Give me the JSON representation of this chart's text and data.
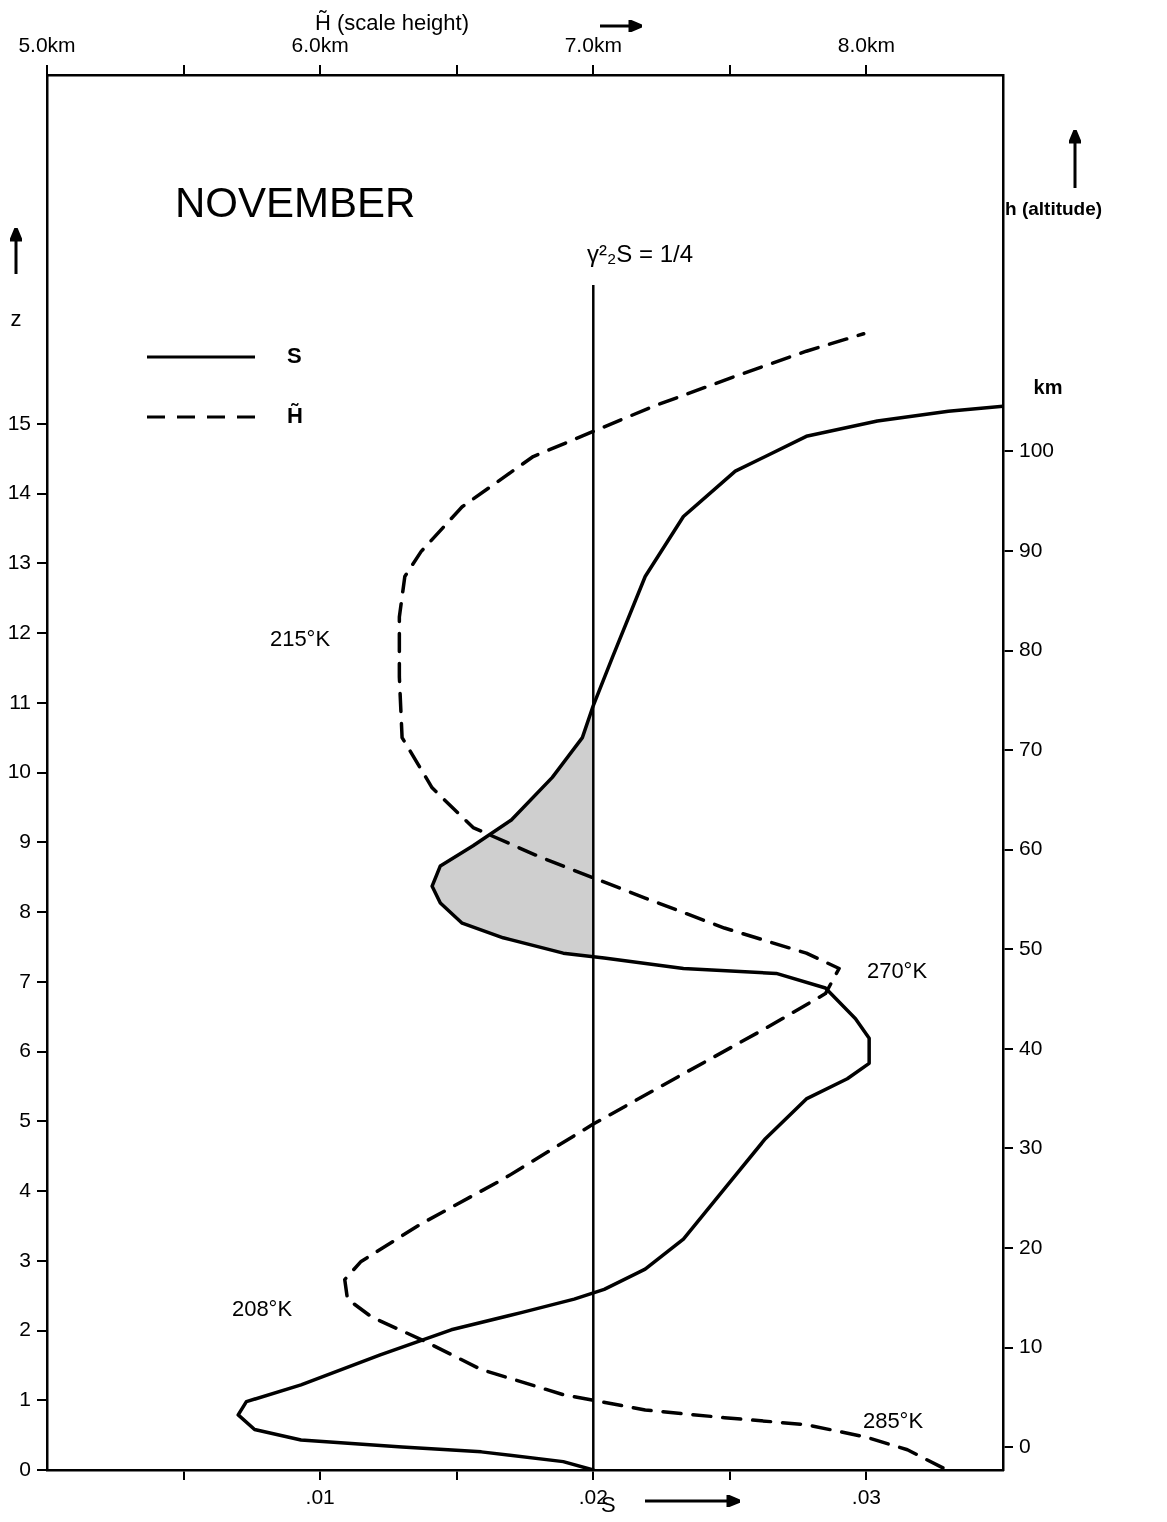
{
  "chart_data": {
    "type": "line",
    "title": "NOVEMBER",
    "xlabel": "S",
    "x2label": "H̃ (scale height)",
    "ylabel": "z",
    "y2label": "h (altitude)",
    "xlim": [
      0,
      0.035
    ],
    "xticks": [
      {
        "value": 0.005,
        "label": null
      },
      {
        "value": 0.01,
        "label": ".01"
      },
      {
        "value": 0.015,
        "label": null
      },
      {
        "value": 0.02,
        "label": ".02"
      },
      {
        "value": 0.025,
        "label": null
      },
      {
        "value": 0.03,
        "label": ".03"
      }
    ],
    "x2lim": [
      5,
      8.5
    ],
    "x2ticks": [
      {
        "value": 5,
        "label": "5.0km"
      },
      {
        "value": 5.5,
        "label": null
      },
      {
        "value": 6,
        "label": "6.0km"
      },
      {
        "value": 6.5,
        "label": null
      },
      {
        "value": 7,
        "label": "7.0km"
      },
      {
        "value": 7.5,
        "label": null
      },
      {
        "value": 8,
        "label": "8.0km"
      }
    ],
    "ylim": [
      0,
      20
    ],
    "yticks": [
      0,
      1,
      2,
      3,
      4,
      5,
      6,
      7,
      8,
      9,
      10,
      11,
      12,
      13,
      14,
      15
    ],
    "y2lim": [
      -2.3,
      137.8
    ],
    "y2ticks": [
      0,
      10,
      20,
      30,
      40,
      50,
      60,
      70,
      80,
      90,
      100
    ],
    "legend": "top left",
    "marker": "none",
    "series": [
      {
        "name": "S",
        "color": "#000000",
        "line_style": "solid",
        "x": [
          0.02,
          0.0189,
          0.0159,
          0.013,
          0.0093,
          0.0076,
          0.007,
          0.0073,
          0.0093,
          0.0122,
          0.0148,
          0.0174,
          0.0193,
          0.0204,
          0.0219,
          0.0233,
          0.0248,
          0.0263,
          0.0278,
          0.0293,
          0.0301,
          0.0301,
          0.0296,
          0.0285,
          0.0267,
          0.0233,
          0.0204,
          0.0189,
          0.0167,
          0.0152,
          0.0144,
          0.0141,
          0.0144,
          0.0156,
          0.017,
          0.0185,
          0.0196,
          0.02,
          0.0207,
          0.0219,
          0.0233,
          0.0252,
          0.0278,
          0.0304,
          0.033,
          0.035
        ],
        "values": [
          0,
          0.12,
          0.26,
          0.33,
          0.43,
          0.58,
          0.79,
          0.98,
          1.22,
          1.65,
          2.01,
          2.26,
          2.45,
          2.59,
          2.88,
          3.31,
          4.03,
          4.75,
          5.32,
          5.61,
          5.83,
          6.19,
          6.47,
          6.91,
          7.12,
          7.19,
          7.34,
          7.41,
          7.63,
          7.84,
          8.13,
          8.37,
          8.66,
          8.95,
          9.32,
          9.93,
          10.5,
          10.96,
          11.65,
          12.81,
          13.67,
          14.32,
          14.82,
          15.04,
          15.18,
          15.25
        ]
      },
      {
        "name": "H̃",
        "color": "#000000",
        "line_style": "dashed",
        "axis": "x2",
        "x": [
          8.28,
          8.15,
          8.0,
          7.78,
          7.48,
          7.19,
          6.89,
          6.59,
          6.37,
          6.19,
          6.1,
          6.09,
          6.15,
          6.37,
          6.67,
          7.0,
          7.33,
          7.63,
          7.85,
          7.9,
          7.78,
          7.48,
          7.19,
          7.0,
          6.81,
          6.56,
          6.41,
          6.3,
          6.29,
          6.29,
          6.31,
          6.37,
          6.52,
          6.78,
          7.0,
          7.22,
          7.52,
          7.78,
          7.99
        ],
        "values": [
          0.03,
          0.29,
          0.47,
          0.65,
          0.75,
          0.86,
          1.08,
          1.44,
          1.87,
          2.19,
          2.45,
          2.73,
          2.99,
          3.53,
          4.17,
          4.96,
          5.68,
          6.33,
          6.83,
          7.19,
          7.41,
          7.77,
          8.2,
          8.49,
          8.78,
          9.21,
          9.78,
          10.5,
          11.37,
          12.23,
          12.81,
          13.17,
          13.81,
          14.53,
          14.89,
          15.25,
          15.68,
          16.04,
          16.29
        ]
      }
    ],
    "ref_lines": [
      {
        "axis": "x",
        "value": 0.02,
        "color": "#000000"
      }
    ],
    "annotations": [
      "γ²₂S = 1/4",
      "215°K",
      "270°K",
      "208°K",
      "285°K",
      "km"
    ]
  }
}
